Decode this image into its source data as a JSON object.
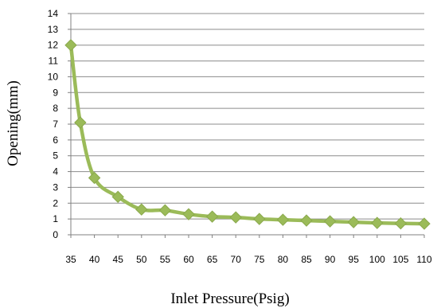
{
  "chart_data": {
    "type": "line",
    "title": "",
    "xlabel": "Inlet Pressure(Psig)",
    "ylabel": "Opening(mm)",
    "xlim": [
      35,
      110
    ],
    "ylim": [
      0,
      14
    ],
    "xticks": [
      35,
      40,
      45,
      50,
      55,
      60,
      65,
      70,
      75,
      80,
      85,
      90,
      95,
      100,
      105,
      110
    ],
    "yticks": [
      0,
      1,
      2,
      3,
      4,
      5,
      6,
      7,
      8,
      9,
      10,
      11,
      12,
      13,
      14
    ],
    "grid": "horizontal",
    "legend": "none",
    "series": [
      {
        "color": "#9bbb59",
        "marker": "diamond",
        "x": [
          35,
          37,
          40,
          45,
          50,
          55,
          60,
          65,
          70,
          75,
          80,
          85,
          90,
          95,
          100,
          105,
          110
        ],
        "y": [
          12.0,
          7.1,
          3.6,
          2.4,
          1.6,
          1.55,
          1.3,
          1.15,
          1.1,
          1.0,
          0.95,
          0.9,
          0.85,
          0.8,
          0.75,
          0.72,
          0.7
        ]
      }
    ]
  }
}
